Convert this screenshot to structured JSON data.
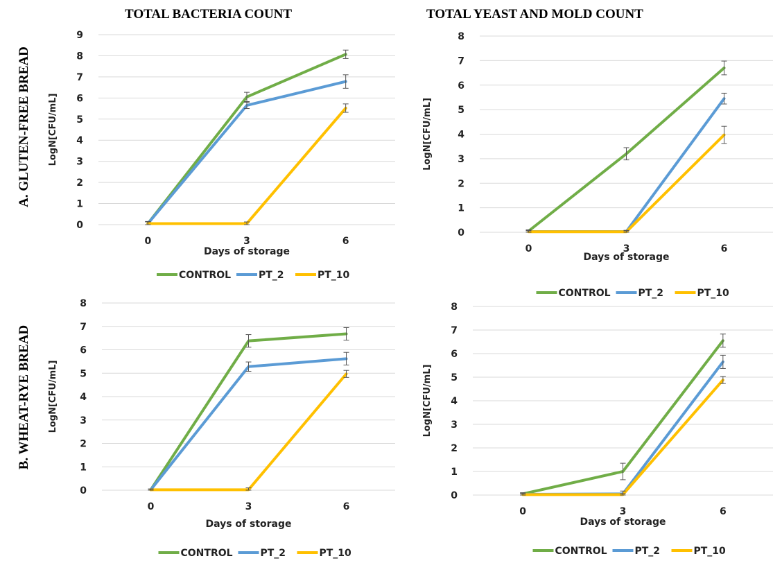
{
  "figure": {
    "column_titles": [
      "TOTAL BACTERIA  COUNT",
      "TOTAL YEAST  AND MOLD COUNT"
    ],
    "row_labels": [
      "A. GLUTEN-FREE  BREAD",
      "B. WHEAT-RYE    BREAD"
    ]
  },
  "colors": {
    "CONTROL": "#70ad47",
    "PT_2": "#5b9bd5",
    "PT_10": "#ffc000",
    "grid": "#d9d9d9",
    "errorbar": "#555555"
  },
  "chart_data": [
    {
      "type": "line",
      "panel": "A - total bacteria count",
      "categories": [
        "0",
        "3",
        "6"
      ],
      "xlabel": "Days of storage",
      "ylabel": "LogN[CFU/mL]",
      "ylim": [
        0,
        9
      ],
      "yticks": [
        0,
        1,
        2,
        3,
        4,
        5,
        6,
        7,
        8,
        9
      ],
      "grid": true,
      "legend": "bottom",
      "series": [
        {
          "name": "CONTROL",
          "values": [
            0.05,
            6.05,
            8.07
          ],
          "errors": [
            0.1,
            0.22,
            0.2
          ]
        },
        {
          "name": "PT_2",
          "values": [
            0.05,
            5.65,
            6.78
          ],
          "errors": [
            0.1,
            0.15,
            0.32
          ]
        },
        {
          "name": "PT_10",
          "values": [
            0.05,
            0.05,
            5.52
          ],
          "errors": [
            0.08,
            0.08,
            0.2
          ]
        }
      ]
    },
    {
      "type": "line",
      "panel": "A - total yeast and mold count",
      "categories": [
        "0",
        "3",
        "6"
      ],
      "xlabel": "Days of storage",
      "ylabel": "LogN[CFU/mL]",
      "ylim": [
        0,
        8
      ],
      "yticks": [
        0,
        1,
        2,
        3,
        4,
        5,
        6,
        7,
        8
      ],
      "grid": true,
      "legend": "bottom",
      "series": [
        {
          "name": "CONTROL",
          "values": [
            0.05,
            3.2,
            6.7
          ],
          "errors": [
            0.05,
            0.25,
            0.28
          ]
        },
        {
          "name": "PT_2",
          "values": [
            0.03,
            0.03,
            5.45
          ],
          "errors": [
            0.05,
            0.05,
            0.22
          ]
        },
        {
          "name": "PT_10",
          "values": [
            0.02,
            0.02,
            3.97
          ],
          "errors": [
            0.04,
            0.04,
            0.35
          ]
        }
      ]
    },
    {
      "type": "line",
      "panel": "B - total bacteria count",
      "categories": [
        "0",
        "3",
        "6"
      ],
      "xlabel": "Days of storage",
      "ylabel": "LogN[CFU/mL]",
      "ylim": [
        0,
        8
      ],
      "yticks": [
        0,
        1,
        2,
        3,
        4,
        5,
        6,
        7,
        8
      ],
      "grid": true,
      "legend": "bottom",
      "series": [
        {
          "name": "CONTROL",
          "values": [
            0.02,
            6.38,
            6.68
          ],
          "errors": [
            0.03,
            0.27,
            0.27
          ]
        },
        {
          "name": "PT_2",
          "values": [
            0.02,
            5.28,
            5.62
          ],
          "errors": [
            0.03,
            0.2,
            0.27
          ]
        },
        {
          "name": "PT_10",
          "values": [
            0.02,
            0.02,
            4.97
          ],
          "errors": [
            0.03,
            0.08,
            0.15
          ]
        }
      ]
    },
    {
      "type": "line",
      "panel": "B - total yeast and mold count",
      "categories": [
        "0",
        "3",
        "6"
      ],
      "xlabel": "Days of storage",
      "ylabel": "LogN[CFU/mL]",
      "ylim": [
        0,
        8
      ],
      "yticks": [
        0,
        1,
        2,
        3,
        4,
        5,
        6,
        7,
        8
      ],
      "grid": true,
      "legend": "bottom",
      "series": [
        {
          "name": "CONTROL",
          "values": [
            0.05,
            1.0,
            6.55
          ],
          "errors": [
            0.05,
            0.35,
            0.28
          ]
        },
        {
          "name": "PT_2",
          "values": [
            0.03,
            0.05,
            5.65
          ],
          "errors": [
            0.04,
            0.12,
            0.28
          ]
        },
        {
          "name": "PT_10",
          "values": [
            0.02,
            0.02,
            4.88
          ],
          "errors": [
            0.04,
            0.04,
            0.15
          ]
        }
      ]
    }
  ]
}
